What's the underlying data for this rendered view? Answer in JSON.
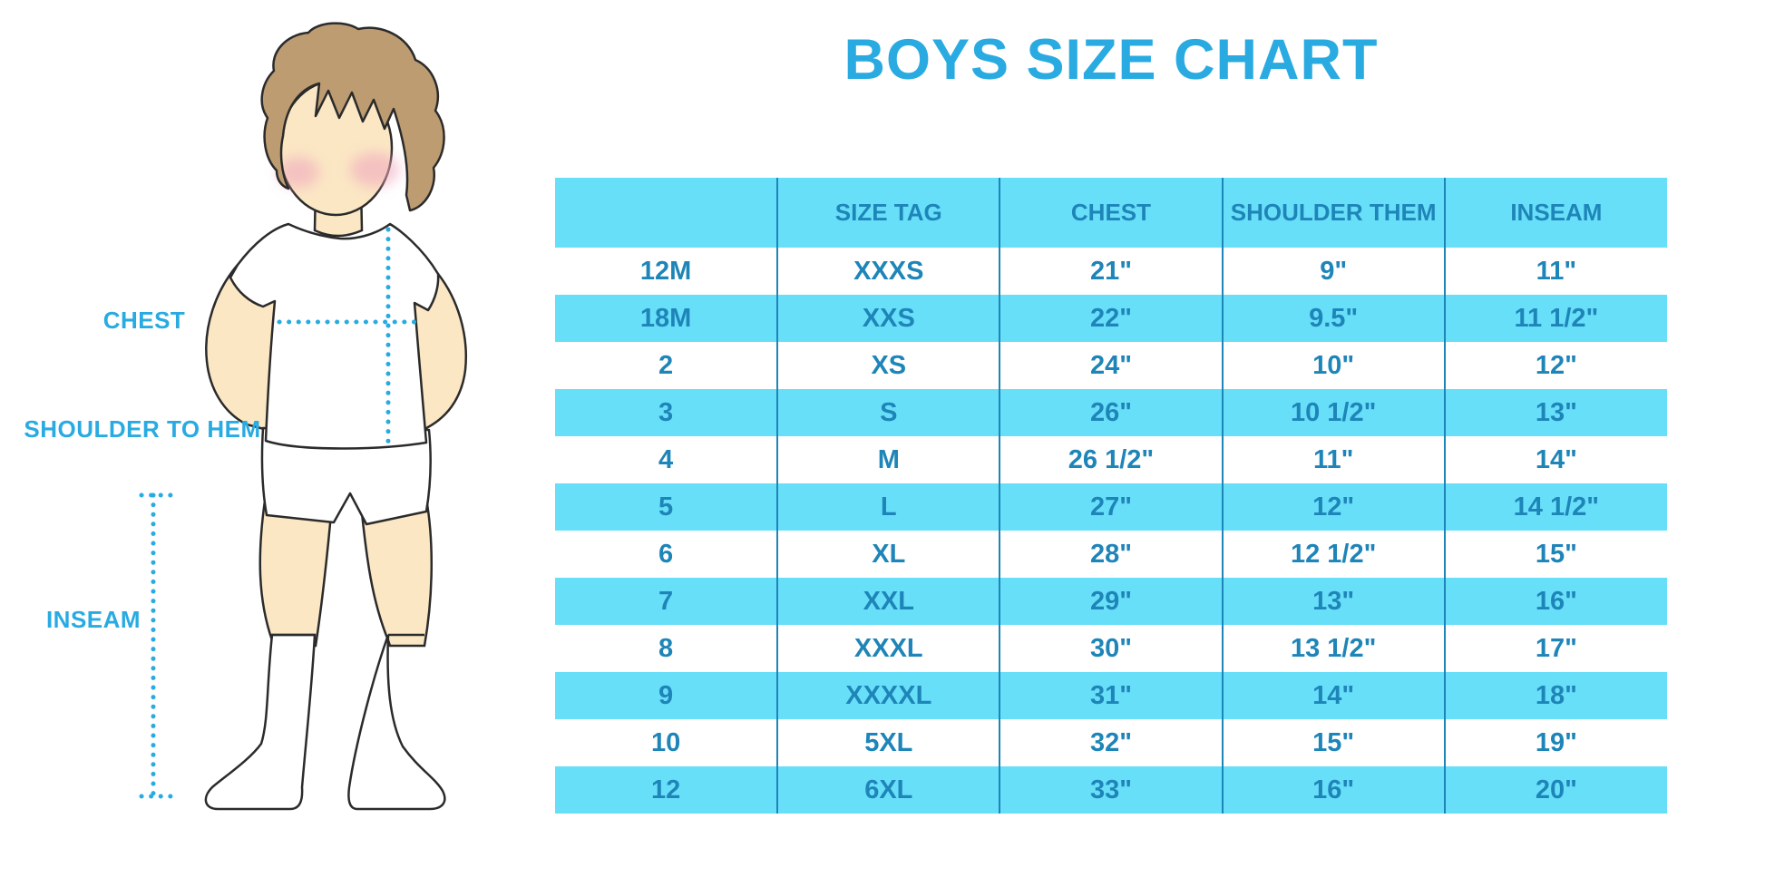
{
  "chart_data": {
    "type": "table",
    "title": "BOYS SIZE CHART",
    "headers": [
      "",
      "SIZE TAG",
      "CHEST",
      "SHOULDER THEM",
      "INSEAM"
    ],
    "rows": [
      [
        "12M",
        "XXXS",
        "21\"",
        "9\"",
        "11\""
      ],
      [
        "18M",
        "XXS",
        "22\"",
        "9.5\"",
        "11 1/2\""
      ],
      [
        "2",
        "XS",
        "24\"",
        "10\"",
        "12\""
      ],
      [
        "3",
        "S",
        "26\"",
        "10 1/2\"",
        "13\""
      ],
      [
        "4",
        "M",
        "26 1/2\"",
        "11\"",
        "14\""
      ],
      [
        "5",
        "L",
        "27\"",
        "12\"",
        "14 1/2\""
      ],
      [
        "6",
        "XL",
        "28\"",
        "12 1/2\"",
        "15\""
      ],
      [
        "7",
        "XXL",
        "29\"",
        "13\"",
        "16\""
      ],
      [
        "8",
        "XXXL",
        "30\"",
        "13 1/2\"",
        "17\""
      ],
      [
        "9",
        "XXXXL",
        "31\"",
        "14\"",
        "18\""
      ],
      [
        "10",
        "5XL",
        "32\"",
        "15\"",
        "19\""
      ],
      [
        "12",
        "6XL",
        "33\"",
        "16\"",
        "20\""
      ]
    ],
    "stripe_pattern": "header and every even data row highlighted",
    "legend_position": "none",
    "grid": "vertical column dividers only"
  },
  "diagram": {
    "chest_label": "CHEST",
    "shoulder_to_hem_label": "SHOULDER TO HEM",
    "inseam_label": "INSEAM"
  },
  "colors": {
    "title_blue": "#29ABE2",
    "stripe_blue": "#68DFF9",
    "table_text_blue": "#1E85B8",
    "dotted_line_blue": "#29ABE2",
    "hair_brown": "#BD9C72",
    "skin": "#FBE7C4",
    "cheek_pink": "#F0A9BE",
    "outline": "#2B2B2B"
  }
}
